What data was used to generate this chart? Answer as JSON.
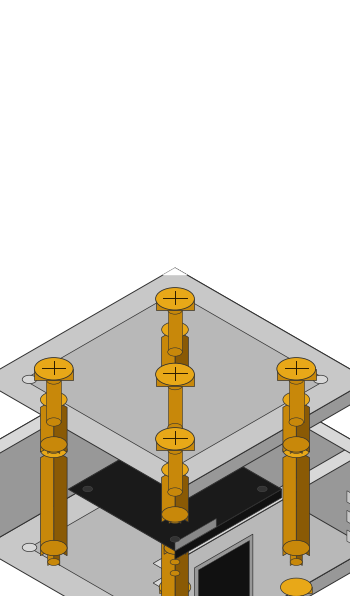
{
  "bg_color": "#ffffff",
  "plate_top": "#c8c8c8",
  "plate_mid": "#b8b8b8",
  "plate_dark": "#989898",
  "plate_light": "#d8d8d8",
  "gold_light": "#e8a818",
  "gold_mid": "#c8880a",
  "gold_dark": "#8a5a05",
  "pcb_dark": "#1a1a1a",
  "pcb_comp_light": "#d0d0d0",
  "pcb_comp_white": "#e8e8e8",
  "rubber": "#555555",
  "rubber_dark": "#333333",
  "outline": "#303030",
  "figsize": [
    3.5,
    5.96
  ],
  "dpi": 100
}
